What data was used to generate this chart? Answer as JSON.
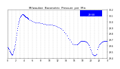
{
  "title": "Milwaukee  Barometric  Pressure  per  Min",
  "bg_color": "#ffffff",
  "plot_bg_color": "#ffffff",
  "dot_color": "#0000ff",
  "grid_color": "#c0c0c0",
  "legend_box_color": "#0000ff",
  "y_min": 29.4,
  "y_max": 30.2,
  "x_min": 0,
  "x_max": 1440,
  "pressure_data": [
    [
      0,
      29.58
    ],
    [
      5,
      29.57
    ],
    [
      10,
      29.56
    ],
    [
      15,
      29.55
    ],
    [
      20,
      29.54
    ],
    [
      25,
      29.52
    ],
    [
      30,
      29.51
    ],
    [
      35,
      29.5
    ],
    [
      40,
      29.49
    ],
    [
      45,
      29.48
    ],
    [
      50,
      29.47
    ],
    [
      55,
      29.46
    ],
    [
      60,
      29.45
    ],
    [
      65,
      29.46
    ],
    [
      70,
      29.47
    ],
    [
      75,
      29.49
    ],
    [
      80,
      29.51
    ],
    [
      85,
      29.53
    ],
    [
      90,
      29.55
    ],
    [
      95,
      29.57
    ],
    [
      100,
      29.6
    ],
    [
      105,
      29.63
    ],
    [
      110,
      29.67
    ],
    [
      115,
      29.7
    ],
    [
      120,
      29.74
    ],
    [
      125,
      29.78
    ],
    [
      130,
      29.82
    ],
    [
      135,
      29.86
    ],
    [
      140,
      29.9
    ],
    [
      145,
      29.93
    ],
    [
      150,
      29.96
    ],
    [
      155,
      29.98
    ],
    [
      160,
      30.01
    ],
    [
      165,
      30.03
    ],
    [
      170,
      30.05
    ],
    [
      175,
      30.07
    ],
    [
      180,
      30.08
    ],
    [
      185,
      30.09
    ],
    [
      190,
      30.1
    ],
    [
      195,
      30.11
    ],
    [
      200,
      30.11
    ],
    [
      205,
      30.12
    ],
    [
      210,
      30.12
    ],
    [
      215,
      30.12
    ],
    [
      220,
      30.12
    ],
    [
      225,
      30.12
    ],
    [
      230,
      30.11
    ],
    [
      235,
      30.11
    ],
    [
      240,
      30.1
    ],
    [
      245,
      30.1
    ],
    [
      250,
      30.09
    ],
    [
      255,
      30.09
    ],
    [
      260,
      30.08
    ],
    [
      265,
      30.08
    ],
    [
      270,
      30.07
    ],
    [
      275,
      30.07
    ],
    [
      280,
      30.06
    ],
    [
      285,
      30.06
    ],
    [
      290,
      30.05
    ],
    [
      295,
      30.05
    ],
    [
      300,
      30.04
    ],
    [
      320,
      30.03
    ],
    [
      340,
      30.02
    ],
    [
      360,
      30.01
    ],
    [
      380,
      30.0
    ],
    [
      400,
      29.99
    ],
    [
      420,
      29.99
    ],
    [
      440,
      29.98
    ],
    [
      460,
      29.98
    ],
    [
      480,
      29.97
    ],
    [
      500,
      29.97
    ],
    [
      520,
      29.96
    ],
    [
      540,
      29.96
    ],
    [
      560,
      29.95
    ],
    [
      580,
      29.95
    ],
    [
      600,
      29.95
    ],
    [
      620,
      29.95
    ],
    [
      640,
      29.95
    ],
    [
      660,
      29.94
    ],
    [
      680,
      29.94
    ],
    [
      700,
      29.93
    ],
    [
      720,
      29.92
    ],
    [
      740,
      29.91
    ],
    [
      760,
      29.9
    ],
    [
      780,
      29.88
    ],
    [
      800,
      29.86
    ],
    [
      820,
      29.83
    ],
    [
      840,
      29.8
    ],
    [
      860,
      29.77
    ],
    [
      880,
      29.73
    ],
    [
      900,
      29.7
    ],
    [
      920,
      29.67
    ],
    [
      940,
      29.64
    ],
    [
      960,
      29.63
    ],
    [
      980,
      29.62
    ],
    [
      1000,
      29.62
    ],
    [
      1010,
      29.63
    ],
    [
      1020,
      29.64
    ],
    [
      1030,
      29.65
    ],
    [
      1040,
      29.66
    ],
    [
      1050,
      29.67
    ],
    [
      1060,
      29.68
    ],
    [
      1070,
      29.68
    ],
    [
      1080,
      29.68
    ],
    [
      1090,
      29.68
    ],
    [
      1100,
      29.68
    ],
    [
      1110,
      29.68
    ],
    [
      1120,
      29.68
    ],
    [
      1130,
      29.67
    ],
    [
      1140,
      29.67
    ],
    [
      1150,
      29.66
    ],
    [
      1160,
      29.65
    ],
    [
      1170,
      29.63
    ],
    [
      1180,
      29.61
    ],
    [
      1190,
      29.58
    ],
    [
      1200,
      29.55
    ],
    [
      1210,
      29.52
    ],
    [
      1220,
      29.49
    ],
    [
      1230,
      29.47
    ],
    [
      1240,
      29.45
    ],
    [
      1250,
      29.44
    ],
    [
      1260,
      29.44
    ],
    [
      1270,
      29.44
    ],
    [
      1280,
      29.45
    ],
    [
      1290,
      29.47
    ],
    [
      1300,
      29.55
    ],
    [
      1310,
      29.58
    ],
    [
      1320,
      29.6
    ],
    [
      1330,
      29.62
    ],
    [
      1340,
      29.64
    ],
    [
      1350,
      29.65
    ],
    [
      1360,
      29.66
    ],
    [
      1370,
      29.67
    ],
    [
      1380,
      29.67
    ],
    [
      1390,
      29.68
    ],
    [
      1400,
      29.68
    ],
    [
      1410,
      29.68
    ],
    [
      1420,
      29.68
    ],
    [
      1430,
      29.68
    ],
    [
      1440,
      29.68
    ]
  ],
  "y_ticks": [
    29.4,
    29.5,
    29.6,
    29.7,
    29.8,
    29.9,
    30.0,
    30.1,
    30.2
  ],
  "y_tick_labels": [
    "29.4",
    "29.5",
    "29.6",
    "29.7",
    "29.8",
    "29.9",
    "30.0",
    "30.1",
    "30.2"
  ],
  "legend_label": "29.68"
}
